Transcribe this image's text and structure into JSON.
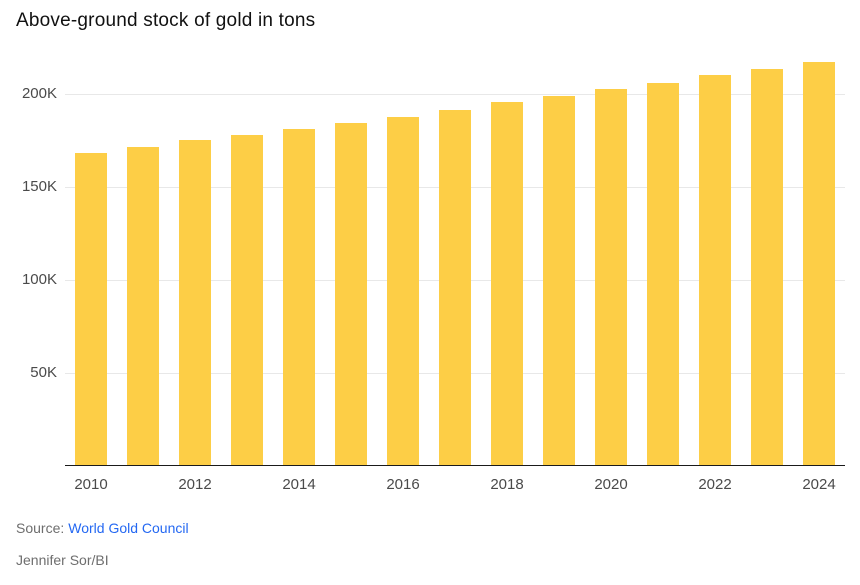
{
  "page": {
    "title": "Above-ground stock of gold in tons"
  },
  "chart_data": {
    "type": "bar",
    "title": "Above-ground stock of gold in tons",
    "xlabel": "",
    "ylabel": "",
    "unit": "tons",
    "categories": [
      "2010",
      "2011",
      "2012",
      "2013",
      "2014",
      "2015",
      "2016",
      "2017",
      "2018",
      "2019",
      "2020",
      "2021",
      "2022",
      "2023",
      "2024"
    ],
    "values": [
      168000,
      171000,
      174500,
      177500,
      180500,
      184000,
      187000,
      191000,
      195000,
      198500,
      202000,
      205500,
      209500,
      213000,
      216500
    ],
    "ylim": [
      0,
      221500
    ],
    "yticks": [
      {
        "value": 50000,
        "label": "50K"
      },
      {
        "value": 100000,
        "label": "100K"
      },
      {
        "value": 150000,
        "label": "150K"
      },
      {
        "value": 200000,
        "label": "200K"
      }
    ],
    "xticks": [
      "2010",
      "2012",
      "2014",
      "2016",
      "2018",
      "2020",
      "2022",
      "2024"
    ],
    "grid": true,
    "legend": false,
    "bar_color": "#FDCE46"
  },
  "colors": {
    "background": "#FFFFFF",
    "bar": "#FDCE46",
    "gridline": "#E8E8E8",
    "axis": "#1A1A1A",
    "tick_label": "#4A4A4A",
    "title_text": "#111111",
    "link": "#2468F2",
    "muted_text": "#6E6E6E"
  },
  "footer": {
    "source_prefix": "Source:",
    "source_link_label": "World Gold Council",
    "credit": "Jennifer Sor/BI"
  }
}
